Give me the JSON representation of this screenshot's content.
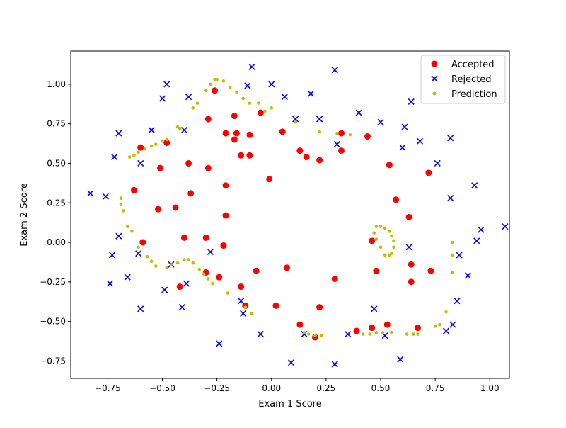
{
  "chart_data": {
    "type": "scatter",
    "xlabel": "Exam 1 Score",
    "ylabel": "Exam 2 Score",
    "xlim": [
      -0.92,
      1.09
    ],
    "ylim": [
      -0.86,
      1.21
    ],
    "xticks": [
      -0.75,
      -0.5,
      -0.25,
      0.0,
      0.25,
      0.5,
      0.75,
      1.0
    ],
    "xtick_labels": [
      "−0.75",
      "−0.50",
      "−0.25",
      "0.00",
      "0.25",
      "0.50",
      "0.75",
      "1.00"
    ],
    "yticks": [
      -0.75,
      -0.5,
      -0.25,
      0.0,
      0.25,
      0.5,
      0.75,
      1.0
    ],
    "ytick_labels": [
      "−0.75",
      "−0.50",
      "−0.25",
      "0.00",
      "0.25",
      "0.50",
      "0.75",
      "1.00"
    ],
    "grid": false,
    "legend_position": "top-right",
    "series": [
      {
        "name": "Accepted",
        "marker": "circle",
        "color": "#ff0000",
        "points": [
          [
            -0.26,
            0.96
          ],
          [
            -0.29,
            0.78
          ],
          [
            -0.17,
            0.8
          ],
          [
            -0.05,
            0.82
          ],
          [
            -0.21,
            0.69
          ],
          [
            -0.16,
            0.69
          ],
          [
            -0.1,
            0.68
          ],
          [
            -0.17,
            0.65
          ],
          [
            0.05,
            0.7
          ],
          [
            -0.6,
            0.6
          ],
          [
            -0.48,
            0.63
          ],
          [
            0.32,
            0.69
          ],
          [
            0.44,
            0.67
          ],
          [
            0.13,
            0.58
          ],
          [
            0.16,
            0.54
          ],
          [
            0.22,
            0.52
          ],
          [
            0.32,
            0.58
          ],
          [
            -0.14,
            0.55
          ],
          [
            -0.1,
            0.55
          ],
          [
            -0.51,
            0.47
          ],
          [
            -0.38,
            0.5
          ],
          [
            -0.29,
            0.47
          ],
          [
            0.54,
            0.49
          ],
          [
            0.72,
            0.44
          ],
          [
            -0.01,
            0.4
          ],
          [
            -0.21,
            0.36
          ],
          [
            -0.63,
            0.33
          ],
          [
            -0.37,
            0.31
          ],
          [
            0.57,
            0.27
          ],
          [
            -0.52,
            0.21
          ],
          [
            -0.44,
            0.22
          ],
          [
            -0.21,
            0.17
          ],
          [
            0.63,
            0.16
          ],
          [
            -0.4,
            0.03
          ],
          [
            -0.3,
            0.03
          ],
          [
            -0.59,
            0.0
          ],
          [
            -0.22,
            -0.02
          ],
          [
            0.46,
            0.01
          ],
          [
            -0.07,
            -0.18
          ],
          [
            0.07,
            -0.16
          ],
          [
            -0.3,
            -0.19
          ],
          [
            -0.24,
            -0.22
          ],
          [
            0.29,
            -0.23
          ],
          [
            0.48,
            -0.18
          ],
          [
            0.64,
            -0.14
          ],
          [
            0.73,
            -0.18
          ],
          [
            -0.14,
            -0.28
          ],
          [
            0.64,
            -0.25
          ],
          [
            -0.42,
            -0.28
          ],
          [
            -0.12,
            -0.4
          ],
          [
            0.02,
            -0.4
          ],
          [
            0.22,
            -0.41
          ],
          [
            0.13,
            -0.52
          ],
          [
            0.2,
            -0.6
          ],
          [
            0.39,
            -0.56
          ],
          [
            0.46,
            -0.54
          ],
          [
            0.53,
            -0.52
          ],
          [
            0.67,
            -0.54
          ]
        ]
      },
      {
        "name": "Rejected",
        "marker": "x",
        "color": "#0000ff",
        "points": [
          [
            -0.09,
            1.11
          ],
          [
            0.29,
            1.09
          ],
          [
            -0.48,
            1.0
          ],
          [
            -0.11,
            0.99
          ],
          [
            0.0,
            1.0
          ],
          [
            -0.5,
            0.91
          ],
          [
            -0.38,
            0.92
          ],
          [
            0.06,
            0.92
          ],
          [
            0.18,
            0.94
          ],
          [
            0.64,
            0.89
          ],
          [
            0.4,
            0.82
          ],
          [
            0.11,
            0.78
          ],
          [
            0.22,
            0.78
          ],
          [
            0.5,
            0.76
          ],
          [
            0.61,
            0.73
          ],
          [
            -0.55,
            0.71
          ],
          [
            -0.4,
            0.71
          ],
          [
            -0.7,
            0.69
          ],
          [
            0.82,
            0.66
          ],
          [
            0.68,
            0.64
          ],
          [
            0.3,
            0.62
          ],
          [
            0.6,
            0.6
          ],
          [
            -0.72,
            0.54
          ],
          [
            -0.6,
            0.5
          ],
          [
            0.76,
            0.5
          ],
          [
            -0.83,
            0.31
          ],
          [
            -0.76,
            0.29
          ],
          [
            0.93,
            0.36
          ],
          [
            0.82,
            0.28
          ],
          [
            -0.7,
            0.04
          ],
          [
            0.96,
            0.08
          ],
          [
            1.07,
            0.1
          ],
          [
            0.94,
            0.01
          ],
          [
            -0.73,
            -0.08
          ],
          [
            -0.61,
            -0.07
          ],
          [
            -0.28,
            -0.06
          ],
          [
            0.63,
            -0.03
          ],
          [
            0.86,
            -0.08
          ],
          [
            -0.66,
            -0.22
          ],
          [
            -0.74,
            -0.26
          ],
          [
            -0.46,
            -0.14
          ],
          [
            -0.39,
            -0.26
          ],
          [
            0.9,
            -0.21
          ],
          [
            -0.49,
            -0.3
          ],
          [
            -0.14,
            -0.37
          ],
          [
            -0.6,
            -0.42
          ],
          [
            -0.41,
            -0.41
          ],
          [
            -0.13,
            -0.45
          ],
          [
            0.47,
            -0.42
          ],
          [
            0.85,
            -0.37
          ],
          [
            0.83,
            -0.52
          ],
          [
            -0.05,
            -0.58
          ],
          [
            0.15,
            -0.58
          ],
          [
            0.35,
            -0.58
          ],
          [
            0.52,
            -0.59
          ],
          [
            0.8,
            -0.56
          ],
          [
            -0.24,
            -0.64
          ],
          [
            0.09,
            -0.76
          ],
          [
            0.29,
            -0.77
          ],
          [
            0.59,
            -0.74
          ]
        ]
      },
      {
        "name": "Prediction",
        "marker": "dot",
        "color": "#bfbf00",
        "points": [
          [
            -0.26,
            1.03
          ],
          [
            -0.25,
            1.03
          ],
          [
            -0.22,
            1.02
          ],
          [
            -0.28,
            1.0
          ],
          [
            -0.19,
            0.98
          ],
          [
            -0.3,
            0.96
          ],
          [
            -0.16,
            0.95
          ],
          [
            -0.13,
            0.91
          ],
          [
            -0.34,
            0.88
          ],
          [
            -0.1,
            0.88
          ],
          [
            -0.36,
            0.85
          ],
          [
            -0.06,
            0.88
          ],
          [
            -0.03,
            0.83
          ],
          [
            0.0,
            0.85
          ],
          [
            0.11,
            0.76
          ],
          [
            -0.42,
            0.72
          ],
          [
            -0.43,
            0.73
          ],
          [
            -0.48,
            0.65
          ],
          [
            -0.5,
            0.64
          ],
          [
            -0.53,
            0.62
          ],
          [
            -0.55,
            0.61
          ],
          [
            -0.58,
            0.59
          ],
          [
            -0.61,
            0.57
          ],
          [
            -0.63,
            0.55
          ],
          [
            -0.65,
            0.54
          ],
          [
            0.22,
            0.7
          ],
          [
            0.3,
            0.69
          ],
          [
            0.36,
            0.68
          ],
          [
            -0.69,
            0.28
          ],
          [
            -0.69,
            0.24
          ],
          [
            -0.68,
            0.2
          ],
          [
            -0.66,
            0.1
          ],
          [
            -0.64,
            0.07
          ],
          [
            -0.61,
            -0.03
          ],
          [
            -0.57,
            -0.09
          ],
          [
            -0.55,
            -0.12
          ],
          [
            -0.53,
            -0.15
          ],
          [
            -0.48,
            -0.16
          ],
          [
            -0.46,
            -0.14
          ],
          [
            -0.43,
            -0.13
          ],
          [
            -0.4,
            -0.11
          ],
          [
            -0.38,
            -0.11
          ],
          [
            -0.36,
            -0.13
          ],
          [
            -0.33,
            -0.17
          ],
          [
            -0.31,
            -0.2
          ],
          [
            -0.29,
            -0.23
          ],
          [
            -0.27,
            -0.26
          ],
          [
            -0.2,
            -0.32
          ],
          [
            -0.12,
            -0.41
          ],
          [
            -0.09,
            -0.45
          ],
          [
            0.48,
            0.1
          ],
          [
            0.5,
            0.1
          ],
          [
            0.52,
            0.09
          ],
          [
            0.54,
            0.07
          ],
          [
            0.55,
            0.04
          ],
          [
            0.56,
            0.01
          ],
          [
            0.56,
            -0.03
          ],
          [
            0.55,
            -0.07
          ],
          [
            0.54,
            -0.08
          ],
          [
            0.52,
            -0.08
          ],
          [
            0.5,
            -0.03
          ],
          [
            0.48,
            0.02
          ],
          [
            0.47,
            0.06
          ],
          [
            0.15,
            -0.57
          ],
          [
            0.17,
            -0.58
          ],
          [
            0.2,
            -0.59
          ],
          [
            0.23,
            -0.59
          ],
          [
            0.42,
            -0.58
          ],
          [
            0.45,
            -0.58
          ],
          [
            0.48,
            -0.57
          ],
          [
            0.51,
            -0.57
          ],
          [
            0.55,
            -0.57
          ],
          [
            0.62,
            -0.58
          ],
          [
            0.65,
            -0.58
          ],
          [
            0.67,
            -0.58
          ],
          [
            0.75,
            -0.53
          ],
          [
            0.77,
            -0.52
          ],
          [
            0.8,
            -0.44
          ],
          [
            0.83,
            -0.19
          ],
          [
            0.83,
            -0.08
          ],
          [
            0.83,
            0.0
          ]
        ]
      }
    ]
  }
}
